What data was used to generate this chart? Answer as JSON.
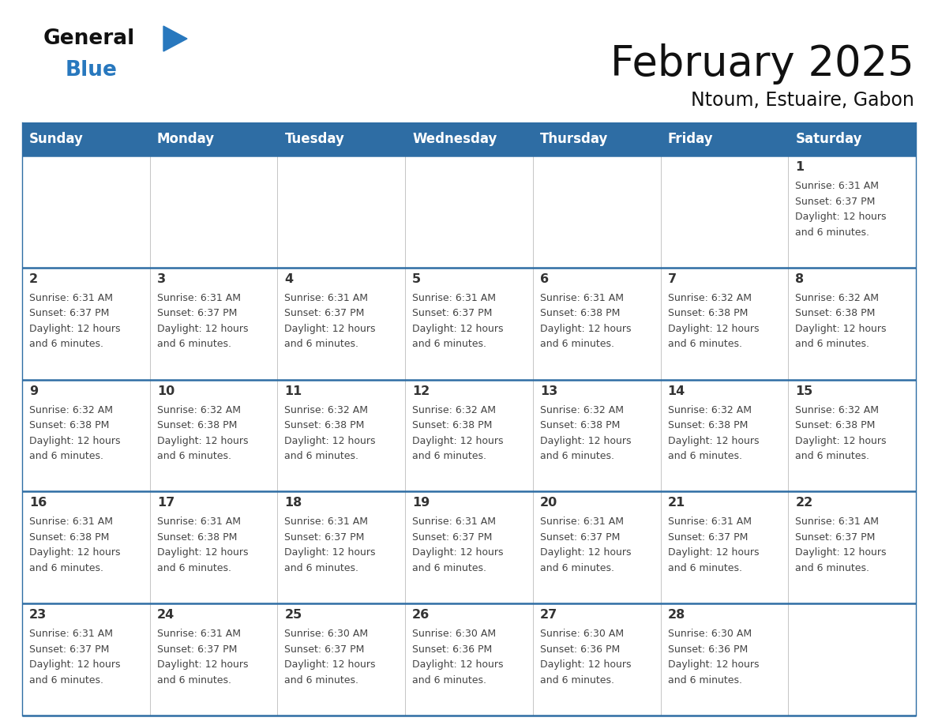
{
  "title": "February 2025",
  "subtitle": "Ntoum, Estuaire, Gabon",
  "days_of_week": [
    "Sunday",
    "Monday",
    "Tuesday",
    "Wednesday",
    "Thursday",
    "Friday",
    "Saturday"
  ],
  "header_bg": "#2E6DA4",
  "header_text": "#FFFFFF",
  "cell_bg": "#FFFFFF",
  "border_color": "#2E6DA4",
  "day_num_color": "#333333",
  "cell_text_color": "#444444",
  "logo_general_color": "#111111",
  "logo_blue_color": "#2878BE",
  "calendar": [
    [
      null,
      null,
      null,
      null,
      null,
      null,
      1
    ],
    [
      2,
      3,
      4,
      5,
      6,
      7,
      8
    ],
    [
      9,
      10,
      11,
      12,
      13,
      14,
      15
    ],
    [
      16,
      17,
      18,
      19,
      20,
      21,
      22
    ],
    [
      23,
      24,
      25,
      26,
      27,
      28,
      null
    ]
  ],
  "day_data": {
    "1": {
      "sunrise": "6:31 AM",
      "sunset": "6:37 PM",
      "daylight": "12 hours",
      "daylight2": "and 6 minutes."
    },
    "2": {
      "sunrise": "6:31 AM",
      "sunset": "6:37 PM",
      "daylight": "12 hours",
      "daylight2": "and 6 minutes."
    },
    "3": {
      "sunrise": "6:31 AM",
      "sunset": "6:37 PM",
      "daylight": "12 hours",
      "daylight2": "and 6 minutes."
    },
    "4": {
      "sunrise": "6:31 AM",
      "sunset": "6:37 PM",
      "daylight": "12 hours",
      "daylight2": "and 6 minutes."
    },
    "5": {
      "sunrise": "6:31 AM",
      "sunset": "6:37 PM",
      "daylight": "12 hours",
      "daylight2": "and 6 minutes."
    },
    "6": {
      "sunrise": "6:31 AM",
      "sunset": "6:38 PM",
      "daylight": "12 hours",
      "daylight2": "and 6 minutes."
    },
    "7": {
      "sunrise": "6:32 AM",
      "sunset": "6:38 PM",
      "daylight": "12 hours",
      "daylight2": "and 6 minutes."
    },
    "8": {
      "sunrise": "6:32 AM",
      "sunset": "6:38 PM",
      "daylight": "12 hours",
      "daylight2": "and 6 minutes."
    },
    "9": {
      "sunrise": "6:32 AM",
      "sunset": "6:38 PM",
      "daylight": "12 hours",
      "daylight2": "and 6 minutes."
    },
    "10": {
      "sunrise": "6:32 AM",
      "sunset": "6:38 PM",
      "daylight": "12 hours",
      "daylight2": "and 6 minutes."
    },
    "11": {
      "sunrise": "6:32 AM",
      "sunset": "6:38 PM",
      "daylight": "12 hours",
      "daylight2": "and 6 minutes."
    },
    "12": {
      "sunrise": "6:32 AM",
      "sunset": "6:38 PM",
      "daylight": "12 hours",
      "daylight2": "and 6 minutes."
    },
    "13": {
      "sunrise": "6:32 AM",
      "sunset": "6:38 PM",
      "daylight": "12 hours",
      "daylight2": "and 6 minutes."
    },
    "14": {
      "sunrise": "6:32 AM",
      "sunset": "6:38 PM",
      "daylight": "12 hours",
      "daylight2": "and 6 minutes."
    },
    "15": {
      "sunrise": "6:32 AM",
      "sunset": "6:38 PM",
      "daylight": "12 hours",
      "daylight2": "and 6 minutes."
    },
    "16": {
      "sunrise": "6:31 AM",
      "sunset": "6:38 PM",
      "daylight": "12 hours",
      "daylight2": "and 6 minutes."
    },
    "17": {
      "sunrise": "6:31 AM",
      "sunset": "6:38 PM",
      "daylight": "12 hours",
      "daylight2": "and 6 minutes."
    },
    "18": {
      "sunrise": "6:31 AM",
      "sunset": "6:37 PM",
      "daylight": "12 hours",
      "daylight2": "and 6 minutes."
    },
    "19": {
      "sunrise": "6:31 AM",
      "sunset": "6:37 PM",
      "daylight": "12 hours",
      "daylight2": "and 6 minutes."
    },
    "20": {
      "sunrise": "6:31 AM",
      "sunset": "6:37 PM",
      "daylight": "12 hours",
      "daylight2": "and 6 minutes."
    },
    "21": {
      "sunrise": "6:31 AM",
      "sunset": "6:37 PM",
      "daylight": "12 hours",
      "daylight2": "and 6 minutes."
    },
    "22": {
      "sunrise": "6:31 AM",
      "sunset": "6:37 PM",
      "daylight": "12 hours",
      "daylight2": "and 6 minutes."
    },
    "23": {
      "sunrise": "6:31 AM",
      "sunset": "6:37 PM",
      "daylight": "12 hours",
      "daylight2": "and 6 minutes."
    },
    "24": {
      "sunrise": "6:31 AM",
      "sunset": "6:37 PM",
      "daylight": "12 hours",
      "daylight2": "and 6 minutes."
    },
    "25": {
      "sunrise": "6:30 AM",
      "sunset": "6:37 PM",
      "daylight": "12 hours",
      "daylight2": "and 6 minutes."
    },
    "26": {
      "sunrise": "6:30 AM",
      "sunset": "6:36 PM",
      "daylight": "12 hours",
      "daylight2": "and 6 minutes."
    },
    "27": {
      "sunrise": "6:30 AM",
      "sunset": "6:36 PM",
      "daylight": "12 hours",
      "daylight2": "and 6 minutes."
    },
    "28": {
      "sunrise": "6:30 AM",
      "sunset": "6:36 PM",
      "daylight": "12 hours",
      "daylight2": "and 6 minutes."
    }
  },
  "fig_width": 11.88,
  "fig_height": 9.18,
  "dpi": 100
}
